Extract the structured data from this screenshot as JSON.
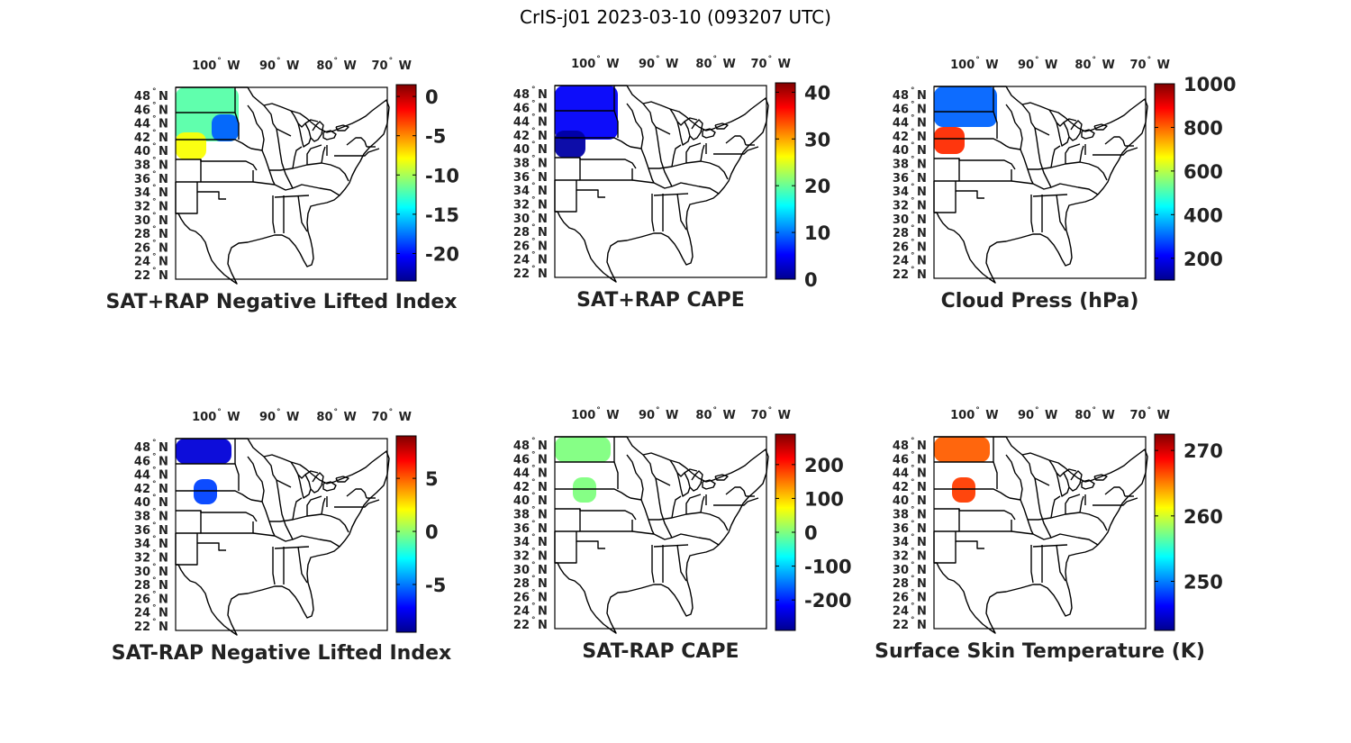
{
  "title": "CrIS-j01 2023-03-10 (093207 UTC)",
  "lon_tick_labels": [
    "100",
    "90",
    "80",
    "70"
  ],
  "lon_hemisphere": "W",
  "lat_tick_labels": [
    "48",
    "46",
    "44",
    "42",
    "40",
    "38",
    "36",
    "34",
    "32",
    "30",
    "28",
    "26",
    "24",
    "22"
  ],
  "lat_hemisphere": "N",
  "degree_symbol": "°",
  "colormap": "jet",
  "colors": {
    "jet": [
      "#00008f",
      "#0000ff",
      "#0080ff",
      "#00ffff",
      "#80ff80",
      "#ffff00",
      "#ff8000",
      "#ff0000",
      "#800000"
    ],
    "map_line": "#000000",
    "background": "#ffffff"
  },
  "panels": [
    {
      "title": "SAT+RAP Negative Lifted Index",
      "colorbar": {
        "min": -23.5,
        "max": 1.5,
        "ticks": [
          0,
          -5,
          -10,
          -15,
          -20
        ],
        "tick_labels": [
          "0",
          "-5",
          "-10",
          "-15",
          "-20"
        ]
      },
      "data_coverage": "ND, SD, NE, northern MT, WY",
      "levels": [
        {
          "region": "ND/SD",
          "value": -12
        },
        {
          "region": "WY/NE",
          "value": -8
        },
        {
          "region": "Central SD",
          "value": -18
        }
      ]
    },
    {
      "title": "SAT+RAP CAPE",
      "colorbar": {
        "min": 0,
        "max": 42,
        "ticks": [
          40,
          30,
          20,
          10,
          0
        ],
        "tick_labels": [
          "40",
          "30",
          "20",
          "10",
          "0"
        ]
      },
      "data_coverage": "ND, SD, NE, WY, MT",
      "levels": [
        {
          "region": "ND/SD",
          "value": 5
        },
        {
          "region": "WY/NE",
          "value": 1
        }
      ]
    },
    {
      "title": "Cloud Press (hPa)",
      "colorbar": {
        "min": 100,
        "max": 1000,
        "ticks": [
          1000,
          800,
          600,
          400,
          200
        ],
        "tick_labels": [
          "1000",
          "800",
          "600",
          "400",
          "200"
        ]
      },
      "data_coverage": "ND, SD, NE, WY, MT",
      "levels": [
        {
          "region": "ND/SD",
          "value": 300
        },
        {
          "region": "Central SD",
          "value": 850
        }
      ]
    },
    {
      "title": "SAT-RAP Negative Lifted Index",
      "colorbar": {
        "min": -9.5,
        "max": 9,
        "ticks": [
          5,
          0,
          -5
        ],
        "tick_labels": [
          "5",
          "0",
          "-5"
        ]
      },
      "data_coverage": "northern ND, western NE",
      "levels": [
        {
          "region": "ND",
          "value": -8
        },
        {
          "region": "NE",
          "value": -6
        }
      ]
    },
    {
      "title": "SAT-RAP CAPE",
      "colorbar": {
        "min": -290,
        "max": 290,
        "ticks": [
          200,
          100,
          0,
          -100,
          -200
        ],
        "tick_labels": [
          "200",
          "100",
          "0",
          "-100",
          "-200"
        ]
      },
      "data_coverage": "ND, SD, NE",
      "levels": [
        {
          "region": "ND/SD/NE",
          "value": 0
        }
      ]
    },
    {
      "title": "Surface Skin Temperature (K)",
      "colorbar": {
        "min": 242.5,
        "max": 272.5,
        "ticks": [
          270,
          260,
          250
        ],
        "tick_labels": [
          "270",
          "260",
          "250"
        ]
      },
      "data_coverage": "ND, SD, NE",
      "levels": [
        {
          "region": "ND/SD",
          "value": 266
        },
        {
          "region": "NE",
          "value": 267
        }
      ]
    }
  ]
}
